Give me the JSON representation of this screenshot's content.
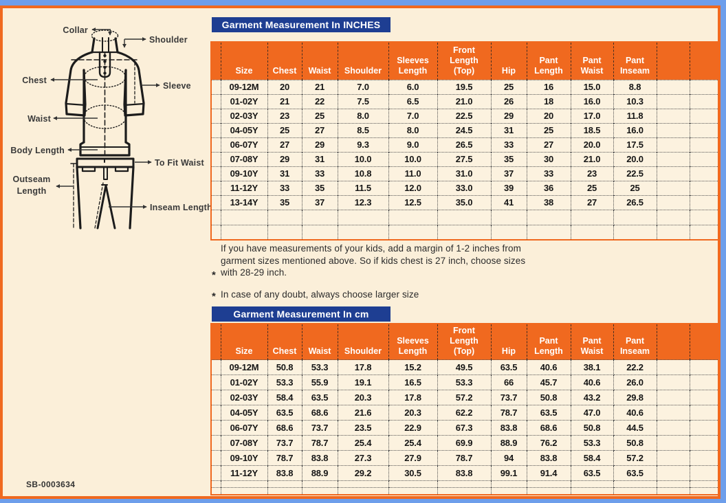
{
  "colors": {
    "accent_orange": "#F0691F",
    "title_bar_blue": "#1E3E92",
    "outer_frame_blue": "#6D9EEB",
    "page_cream": "#FBEFD9"
  },
  "diagram": {
    "labels": {
      "collar": "Collar",
      "shoulder": "Shoulder",
      "chest": "Chest",
      "sleeve": "Sleeve",
      "waist": "Waist",
      "body_length": "Body Length",
      "to_fit_waist": "To Fit Waist",
      "outseam_length": "Outseam Length",
      "inseam_length": "Inseam Length"
    }
  },
  "notes": [
    {
      "marker": "*",
      "text": "If you have measurements of your kids, add a margin of 1-2 inches from garment sizes mentioned above. So if kids chest is 27 inch, choose sizes with 28-29 inch."
    },
    {
      "marker": "*",
      "text": "In case of any doubt, always choose larger size"
    }
  ],
  "tables": [
    {
      "title": "Garment Measurement In INCHES",
      "headers": [
        "",
        "Size",
        "Chest",
        "Waist",
        "Shoulder",
        "Sleeves Length",
        "Front Length (Top)",
        "Hip",
        "Pant Length",
        "Pant Waist",
        "Pant Inseam",
        "",
        ""
      ],
      "rows": [
        [
          "",
          "09-12M",
          "20",
          "21",
          "7.0",
          "6.0",
          "19.5",
          "25",
          "16",
          "15.0",
          "8.8",
          "",
          ""
        ],
        [
          "",
          "01-02Y",
          "21",
          "22",
          "7.5",
          "6.5",
          "21.0",
          "26",
          "18",
          "16.0",
          "10.3",
          "",
          ""
        ],
        [
          "",
          "02-03Y",
          "23",
          "25",
          "8.0",
          "7.0",
          "22.5",
          "29",
          "20",
          "17.0",
          "11.8",
          "",
          ""
        ],
        [
          "",
          "04-05Y",
          "25",
          "27",
          "8.5",
          "8.0",
          "24.5",
          "31",
          "25",
          "18.5",
          "16.0",
          "",
          ""
        ],
        [
          "",
          "06-07Y",
          "27",
          "29",
          "9.3",
          "9.0",
          "26.5",
          "33",
          "27",
          "20.0",
          "17.5",
          "",
          ""
        ],
        [
          "",
          "07-08Y",
          "29",
          "31",
          "10.0",
          "10.0",
          "27.5",
          "35",
          "30",
          "21.0",
          "20.0",
          "",
          ""
        ],
        [
          "",
          "09-10Y",
          "31",
          "33",
          "10.8",
          "11.0",
          "31.0",
          "37",
          "33",
          "23",
          "22.5",
          "",
          ""
        ],
        [
          "",
          "11-12Y",
          "33",
          "35",
          "11.5",
          "12.0",
          "33.0",
          "39",
          "36",
          "25",
          "25",
          "",
          ""
        ],
        [
          "",
          "13-14Y",
          "35",
          "37",
          "12.3",
          "12.5",
          "35.0",
          "41",
          "38",
          "27",
          "26.5",
          "",
          ""
        ],
        [
          "",
          "",
          "",
          "",
          "",
          "",
          "",
          "",
          "",
          "",
          "",
          "",
          ""
        ],
        [
          "",
          "",
          "",
          "",
          "",
          "",
          "",
          "",
          "",
          "",
          "",
          "",
          ""
        ]
      ]
    },
    {
      "title": "Garment Measurement In cm",
      "headers": [
        "",
        "Size",
        "Chest",
        "Waist",
        "Shoulder",
        "Sleeves Length",
        "Front Length (Top)",
        "Hip",
        "Pant Length",
        "Pant Waist",
        "Pant Inseam",
        "",
        ""
      ],
      "rows": [
        [
          "",
          "09-12M",
          "50.8",
          "53.3",
          "17.8",
          "15.2",
          "49.5",
          "63.5",
          "40.6",
          "38.1",
          "22.2",
          "",
          ""
        ],
        [
          "",
          "01-02Y",
          "53.3",
          "55.9",
          "19.1",
          "16.5",
          "53.3",
          "66",
          "45.7",
          "40.6",
          "26.0",
          "",
          ""
        ],
        [
          "",
          "02-03Y",
          "58.4",
          "63.5",
          "20.3",
          "17.8",
          "57.2",
          "73.7",
          "50.8",
          "43.2",
          "29.8",
          "",
          ""
        ],
        [
          "",
          "04-05Y",
          "63.5",
          "68.6",
          "21.6",
          "20.3",
          "62.2",
          "78.7",
          "63.5",
          "47.0",
          "40.6",
          "",
          ""
        ],
        [
          "",
          "06-07Y",
          "68.6",
          "73.7",
          "23.5",
          "22.9",
          "67.3",
          "83.8",
          "68.6",
          "50.8",
          "44.5",
          "",
          ""
        ],
        [
          "",
          "07-08Y",
          "73.7",
          "78.7",
          "25.4",
          "25.4",
          "69.9",
          "88.9",
          "76.2",
          "53.3",
          "50.8",
          "",
          ""
        ],
        [
          "",
          "09-10Y",
          "78.7",
          "83.8",
          "27.3",
          "27.9",
          "78.7",
          "94",
          "83.8",
          "58.4",
          "57.2",
          "",
          ""
        ],
        [
          "",
          "11-12Y",
          "83.8",
          "88.9",
          "29.2",
          "30.5",
          "83.8",
          "99.1",
          "91.4",
          "63.5",
          "63.5",
          "",
          ""
        ],
        [
          "",
          "",
          "",
          "",
          "",
          "",
          "",
          "",
          "",
          "",
          "",
          "",
          ""
        ],
        [
          "",
          "",
          "",
          "",
          "",
          "",
          "",
          "",
          "",
          "",
          "",
          "",
          ""
        ]
      ]
    }
  ],
  "footer": {
    "sku": "SB-0003634"
  }
}
